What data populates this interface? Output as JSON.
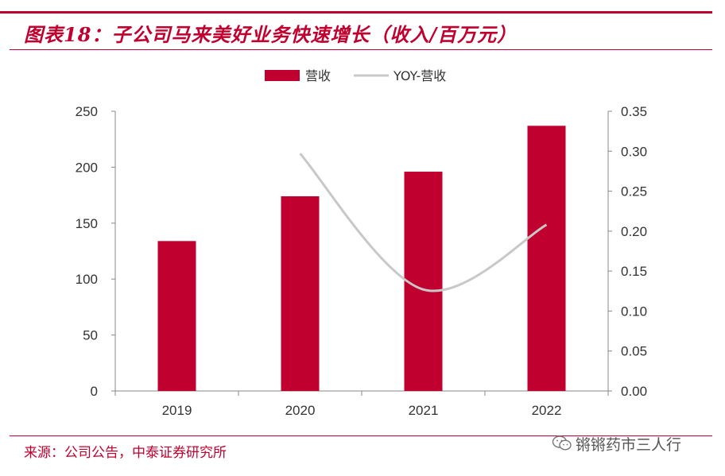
{
  "title": "图表18：子公司马来美好业务快速增长（收入/百万元）",
  "source": "来源：公司公告，中泰证券研究所",
  "watermark": "锵锵药市三人行",
  "watermark_icon": "wechat-icon",
  "colors": {
    "accent": "#c0002f",
    "bar": "#c0002f",
    "line": "#c8c8c8"
  },
  "chart_data": {
    "type": "bar",
    "categories": [
      "2019",
      "2020",
      "2021",
      "2022"
    ],
    "series": [
      {
        "name": "营收",
        "type": "bar",
        "axis": "left",
        "values": [
          134,
          174,
          196,
          237
        ]
      },
      {
        "name": "YOY-营收",
        "type": "line",
        "axis": "right",
        "values": [
          null,
          0.297,
          0.127,
          0.208
        ]
      }
    ],
    "ylim_left": [
      0,
      250
    ],
    "yticks_left": [
      "0",
      "50",
      "100",
      "150",
      "200",
      "250"
    ],
    "ylim_right": [
      0,
      0.35
    ],
    "yticks_right": [
      "0.00",
      "0.05",
      "0.10",
      "0.15",
      "0.20",
      "0.25",
      "0.30",
      "0.35"
    ],
    "legend": "top",
    "grid": false
  }
}
